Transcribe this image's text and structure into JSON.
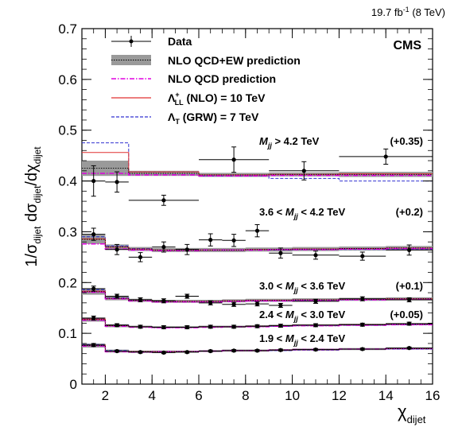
{
  "header": {
    "lumi": "19.7 fb",
    "lumi_exp": "-1",
    "energy": "(8 TeV)",
    "experiment": "CMS"
  },
  "colors": {
    "data": "#000000",
    "nlo_qcd_ew_band": "#9a9a9a",
    "nlo_qcd": "#e000e0",
    "lambda_ll": "#e03030",
    "lambda_t": "#3030d0"
  },
  "legend": {
    "placement": "top-left",
    "entries": [
      {
        "key": "data",
        "label": "Data"
      },
      {
        "key": "nlo_qcd_ew",
        "label": "NLO QCD+EW prediction"
      },
      {
        "key": "nlo_qcd",
        "label": "NLO QCD prediction"
      },
      {
        "key": "lambda_ll",
        "label_prefix": "Λ",
        "label_sup": "+",
        "label_sub": "LL",
        "label_rest": " (NLO) = 10 TeV"
      },
      {
        "key": "lambda_t",
        "label_prefix": "Λ",
        "label_sub": "T",
        "label_rest": " (GRW) = 7 TeV"
      }
    ]
  },
  "chart_data": {
    "type": "scatter",
    "xlabel": "χ",
    "xlabel_sub": "dijet",
    "ylabel": "1/σdijet dσdijet/dχdijet",
    "xlim": [
      1,
      16
    ],
    "ylim": [
      0,
      0.7
    ],
    "x_ticks": [
      2,
      4,
      6,
      8,
      10,
      12,
      14,
      16
    ],
    "y_ticks": [
      0,
      0.1,
      0.2,
      0.3,
      0.4,
      0.5,
      0.6,
      0.7
    ],
    "bin_edges": [
      1,
      2,
      3,
      4,
      5,
      6,
      7,
      8,
      9,
      10,
      12,
      14,
      16
    ],
    "mass_bins": [
      {
        "label": "1.9 < M",
        "label_sub": "jj",
        "label_rest": " < 2.4 TeV",
        "offset_label": "",
        "data": [
          {
            "x": 1.5,
            "xerr": 0.5,
            "y": 0.077,
            "yerr": 0.003
          },
          {
            "x": 2.5,
            "xerr": 0.5,
            "y": 0.065,
            "yerr": 0.002
          },
          {
            "x": 3.5,
            "xerr": 0.5,
            "y": 0.063,
            "yerr": 0.002
          },
          {
            "x": 4.5,
            "xerr": 0.5,
            "y": 0.062,
            "yerr": 0.002
          },
          {
            "x": 5.5,
            "xerr": 0.5,
            "y": 0.063,
            "yerr": 0.002
          },
          {
            "x": 6.5,
            "xerr": 0.5,
            "y": 0.065,
            "yerr": 0.002
          },
          {
            "x": 7.5,
            "xerr": 0.5,
            "y": 0.066,
            "yerr": 0.002
          },
          {
            "x": 8.5,
            "xerr": 0.5,
            "y": 0.066,
            "yerr": 0.002
          },
          {
            "x": 9.5,
            "xerr": 0.5,
            "y": 0.067,
            "yerr": 0.002
          },
          {
            "x": 11,
            "xerr": 1,
            "y": 0.068,
            "yerr": 0.002
          },
          {
            "x": 13,
            "xerr": 1,
            "y": 0.069,
            "yerr": 0.002
          },
          {
            "x": 15,
            "xerr": 1,
            "y": 0.071,
            "yerr": 0.002
          }
        ],
        "nlo_qcd_ew": [
          0.076,
          0.065,
          0.064,
          0.064,
          0.064,
          0.065,
          0.066,
          0.066,
          0.067,
          0.068,
          0.069,
          0.07
        ],
        "band_halfwidth": [
          0.004,
          0.003,
          0.002,
          0.002,
          0.002,
          0.002,
          0.002,
          0.002,
          0.002,
          0.002,
          0.002,
          0.002
        ],
        "nlo_qcd": [
          0.075,
          0.064,
          0.063,
          0.064,
          0.064,
          0.065,
          0.066,
          0.066,
          0.067,
          0.068,
          0.069,
          0.07
        ],
        "lambda_ll": [
          0.077,
          0.065,
          0.064,
          0.064,
          0.064,
          0.065,
          0.066,
          0.066,
          0.067,
          0.068,
          0.069,
          0.07
        ],
        "lambda_t": [
          0.078,
          0.066,
          0.064,
          0.064,
          0.064,
          0.065,
          0.066,
          0.066,
          0.066,
          0.067,
          0.069,
          0.069
        ]
      },
      {
        "label": "2.4 < M",
        "label_sub": "jj",
        "label_rest": " < 3.0 TeV",
        "offset_label": "(+0.05)",
        "data": [
          {
            "x": 1.5,
            "xerr": 0.5,
            "y": 0.13,
            "yerr": 0.004
          },
          {
            "x": 2.5,
            "xerr": 0.5,
            "y": 0.116,
            "yerr": 0.003
          },
          {
            "x": 3.5,
            "xerr": 0.5,
            "y": 0.113,
            "yerr": 0.003
          },
          {
            "x": 4.5,
            "xerr": 0.5,
            "y": 0.112,
            "yerr": 0.003
          },
          {
            "x": 5.5,
            "xerr": 0.5,
            "y": 0.112,
            "yerr": 0.003
          },
          {
            "x": 6.5,
            "xerr": 0.5,
            "y": 0.113,
            "yerr": 0.003
          },
          {
            "x": 7.5,
            "xerr": 0.5,
            "y": 0.113,
            "yerr": 0.003
          },
          {
            "x": 8.5,
            "xerr": 0.5,
            "y": 0.114,
            "yerr": 0.003
          },
          {
            "x": 9.5,
            "xerr": 0.5,
            "y": 0.115,
            "yerr": 0.003
          },
          {
            "x": 11,
            "xerr": 1,
            "y": 0.116,
            "yerr": 0.003
          },
          {
            "x": 13,
            "xerr": 1,
            "y": 0.117,
            "yerr": 0.003
          },
          {
            "x": 15,
            "xerr": 1,
            "y": 0.119,
            "yerr": 0.003
          }
        ],
        "nlo_qcd_ew": [
          0.127,
          0.115,
          0.113,
          0.112,
          0.112,
          0.113,
          0.113,
          0.114,
          0.115,
          0.116,
          0.117,
          0.118
        ],
        "band_halfwidth": [
          0.004,
          0.003,
          0.002,
          0.002,
          0.002,
          0.002,
          0.002,
          0.002,
          0.002,
          0.002,
          0.002,
          0.002
        ],
        "nlo_qcd": [
          0.126,
          0.114,
          0.112,
          0.111,
          0.111,
          0.112,
          0.113,
          0.113,
          0.114,
          0.115,
          0.116,
          0.117
        ],
        "lambda_ll": [
          0.128,
          0.115,
          0.113,
          0.112,
          0.112,
          0.113,
          0.113,
          0.114,
          0.115,
          0.116,
          0.117,
          0.118
        ],
        "lambda_t": [
          0.129,
          0.116,
          0.113,
          0.112,
          0.112,
          0.113,
          0.113,
          0.114,
          0.114,
          0.115,
          0.116,
          0.117
        ]
      },
      {
        "label": "3.0 < M",
        "label_sub": "jj",
        "label_rest": " < 3.6 TeV",
        "offset_label": "(+0.1)",
        "data": [
          {
            "x": 1.5,
            "xerr": 0.5,
            "y": 0.188,
            "yerr": 0.005
          },
          {
            "x": 2.5,
            "xerr": 0.5,
            "y": 0.173,
            "yerr": 0.004
          },
          {
            "x": 3.5,
            "xerr": 0.5,
            "y": 0.166,
            "yerr": 0.004
          },
          {
            "x": 4.5,
            "xerr": 0.5,
            "y": 0.164,
            "yerr": 0.004
          },
          {
            "x": 5.5,
            "xerr": 0.5,
            "y": 0.173,
            "yerr": 0.004
          },
          {
            "x": 6.5,
            "xerr": 0.5,
            "y": 0.16,
            "yerr": 0.004
          },
          {
            "x": 7.5,
            "xerr": 0.5,
            "y": 0.157,
            "yerr": 0.004
          },
          {
            "x": 8.5,
            "xerr": 0.5,
            "y": 0.158,
            "yerr": 0.004
          },
          {
            "x": 9.5,
            "xerr": 0.5,
            "y": 0.155,
            "yerr": 0.004
          },
          {
            "x": 11,
            "xerr": 1,
            "y": 0.163,
            "yerr": 0.004
          },
          {
            "x": 13,
            "xerr": 1,
            "y": 0.168,
            "yerr": 0.004
          },
          {
            "x": 15,
            "xerr": 1,
            "y": 0.166,
            "yerr": 0.004
          }
        ],
        "nlo_qcd_ew": [
          0.182,
          0.169,
          0.165,
          0.163,
          0.163,
          0.163,
          0.164,
          0.165,
          0.165,
          0.166,
          0.167,
          0.168
        ],
        "band_halfwidth": [
          0.006,
          0.004,
          0.003,
          0.003,
          0.003,
          0.003,
          0.003,
          0.003,
          0.003,
          0.003,
          0.003,
          0.003
        ],
        "nlo_qcd": [
          0.181,
          0.168,
          0.164,
          0.162,
          0.162,
          0.162,
          0.163,
          0.164,
          0.164,
          0.165,
          0.166,
          0.167
        ],
        "lambda_ll": [
          0.183,
          0.169,
          0.165,
          0.163,
          0.163,
          0.163,
          0.164,
          0.165,
          0.165,
          0.166,
          0.167,
          0.168
        ],
        "lambda_t": [
          0.186,
          0.17,
          0.165,
          0.163,
          0.163,
          0.163,
          0.164,
          0.164,
          0.164,
          0.165,
          0.166,
          0.166
        ]
      },
      {
        "label": "3.6 < M",
        "label_sub": "jj",
        "label_rest": " < 4.2 TeV",
        "offset_label": "(+0.2)",
        "data": [
          {
            "x": 1.5,
            "xerr": 0.5,
            "y": 0.295,
            "yerr": 0.012
          },
          {
            "x": 2.5,
            "xerr": 0.5,
            "y": 0.265,
            "yerr": 0.01
          },
          {
            "x": 3.5,
            "xerr": 0.5,
            "y": 0.25,
            "yerr": 0.009
          },
          {
            "x": 4.5,
            "xerr": 0.5,
            "y": 0.27,
            "yerr": 0.01
          },
          {
            "x": 5.5,
            "xerr": 0.5,
            "y": 0.265,
            "yerr": 0.01
          },
          {
            "x": 6.5,
            "xerr": 0.5,
            "y": 0.284,
            "yerr": 0.012
          },
          {
            "x": 7.5,
            "xerr": 0.5,
            "y": 0.283,
            "yerr": 0.012
          },
          {
            "x": 8.5,
            "xerr": 0.5,
            "y": 0.302,
            "yerr": 0.012
          },
          {
            "x": 9.5,
            "xerr": 0.5,
            "y": 0.258,
            "yerr": 0.01
          },
          {
            "x": 11,
            "xerr": 1,
            "y": 0.254,
            "yerr": 0.008
          },
          {
            "x": 13,
            "xerr": 1,
            "y": 0.252,
            "yerr": 0.008
          },
          {
            "x": 15,
            "xerr": 1,
            "y": 0.264,
            "yerr": 0.01
          }
        ],
        "nlo_qcd_ew": [
          0.285,
          0.27,
          0.266,
          0.264,
          0.264,
          0.264,
          0.264,
          0.265,
          0.265,
          0.266,
          0.267,
          0.268
        ],
        "band_halfwidth": [
          0.009,
          0.005,
          0.004,
          0.004,
          0.004,
          0.004,
          0.004,
          0.004,
          0.004,
          0.004,
          0.004,
          0.004
        ],
        "nlo_qcd": [
          0.276,
          0.266,
          0.264,
          0.263,
          0.263,
          0.264,
          0.264,
          0.264,
          0.265,
          0.265,
          0.266,
          0.267
        ],
        "lambda_ll": [
          0.286,
          0.27,
          0.266,
          0.264,
          0.264,
          0.264,
          0.264,
          0.265,
          0.265,
          0.266,
          0.267,
          0.268
        ],
        "lambda_t": [
          0.29,
          0.272,
          0.267,
          0.264,
          0.264,
          0.264,
          0.264,
          0.265,
          0.264,
          0.265,
          0.265,
          0.265
        ]
      },
      {
        "label": "M",
        "label_sub": "jj",
        "label_rest": " > 4.2 TeV",
        "offset_label": "(+0.35)",
        "data": [
          {
            "x": 1.5,
            "xerr": 0.5,
            "y": 0.4,
            "yerr": 0.03
          },
          {
            "x": 2.5,
            "xerr": 0.5,
            "y": 0.398,
            "yerr": 0.02
          },
          {
            "x": 4.5,
            "xerr": 1.5,
            "y": 0.362,
            "yerr": 0.01
          },
          {
            "x": 7.5,
            "xerr": 1.5,
            "y": 0.442,
            "yerr": 0.025
          },
          {
            "x": 10.5,
            "xerr": 1.5,
            "y": 0.42,
            "yerr": 0.018
          },
          {
            "x": 14,
            "xerr": 2,
            "y": 0.448,
            "yerr": 0.015
          }
        ],
        "coarse_edges": [
          1,
          3,
          6,
          9,
          12,
          16
        ],
        "nlo_qcd_ew": [
          0.425,
          0.415,
          0.412,
          0.413,
          0.413
        ],
        "band_halfwidth": [
          0.015,
          0.005,
          0.004,
          0.004,
          0.005
        ],
        "nlo_qcd": [
          0.415,
          0.412,
          0.41,
          0.411,
          0.411
        ],
        "lambda_ll": [
          0.456,
          0.418,
          0.412,
          0.413,
          0.414
        ],
        "lambda_t": [
          0.475,
          0.418,
          0.41,
          0.405,
          0.4
        ]
      }
    ]
  }
}
